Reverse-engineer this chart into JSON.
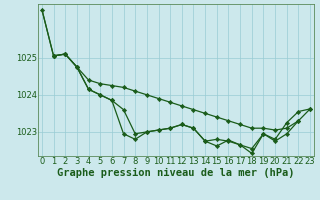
{
  "xlabel": "Graphe pression niveau de la mer (hPa)",
  "background_color": "#cce8ec",
  "grid_color": "#99ccd4",
  "line_color": "#1a5c1a",
  "marker_color": "#1a5c1a",
  "hours": [
    0,
    1,
    2,
    3,
    4,
    5,
    6,
    7,
    8,
    9,
    10,
    11,
    12,
    13,
    14,
    15,
    16,
    17,
    18,
    19,
    20,
    21,
    22,
    23
  ],
  "y_top": [
    1026.3,
    1025.05,
    null,
    null,
    null,
    null,
    null,
    null,
    null,
    null,
    null,
    null,
    null,
    null,
    null,
    null,
    null,
    null,
    null,
    null,
    null,
    null,
    null,
    null
  ],
  "y_line1": [
    null,
    1025.05,
    1025.1,
    1024.75,
    1024.15,
    1024.0,
    1023.85,
    1023.6,
    1022.95,
    1023.0,
    1023.05,
    1023.1,
    1023.2,
    1023.1,
    1022.75,
    1022.8,
    1022.75,
    1022.65,
    1022.55,
    1022.95,
    1022.8,
    1023.25,
    1023.55,
    1023.62
  ],
  "y_line2": [
    null,
    1025.05,
    1025.1,
    1024.75,
    1024.4,
    1024.3,
    1024.25,
    1024.2,
    1024.1,
    1024.0,
    1023.9,
    1023.8,
    1023.7,
    1023.6,
    1023.5,
    1023.4,
    1023.3,
    1023.2,
    1023.1,
    1023.1,
    1023.05,
    1023.1,
    1023.3,
    1023.62
  ],
  "y_line3": [
    null,
    1025.05,
    1025.1,
    1024.75,
    1024.15,
    1024.0,
    1023.85,
    1022.95,
    1022.8,
    1023.0,
    1023.05,
    1023.1,
    1023.2,
    1023.1,
    1022.75,
    1022.62,
    1022.78,
    1022.65,
    1022.42,
    1022.95,
    1022.75,
    1022.95,
    1023.3,
    null
  ],
  "ylim_min": 1022.35,
  "ylim_max": 1026.45,
  "yticks": [
    1023,
    1024,
    1025
  ],
  "tick_fontsize": 6,
  "xlabel_fontsize": 7.5
}
